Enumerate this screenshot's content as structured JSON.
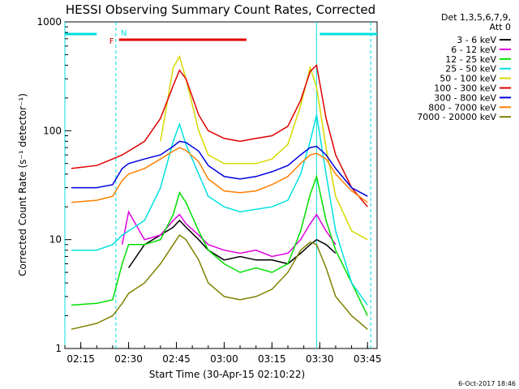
{
  "chart_data": {
    "type": "line",
    "title": "HESSI Observing Summary Count Rates, Corrected",
    "xlabel": "Start Time (30-Apr-15 02:10:22)",
    "ylabel": "Corrected Count Rate (s⁻¹ detector⁻¹)",
    "yscale": "log",
    "ylim": [
      1,
      1000
    ],
    "xlim": [
      "02:10",
      "03:48"
    ],
    "x_ticks": [
      "02:15",
      "02:30",
      "02:45",
      "03:00",
      "03:15",
      "03:30",
      "03:45"
    ],
    "y_ticks": [
      "1",
      "10",
      "100",
      "1000"
    ],
    "legend": {
      "header_line1": "Det 1,3,5,6,7,9,",
      "header_line2": "Att 0",
      "placement": "right"
    },
    "x": [
      "02:12",
      "02:20",
      "02:25",
      "02:28",
      "02:30",
      "02:35",
      "02:40",
      "02:44",
      "02:46",
      "02:48",
      "02:52",
      "02:55",
      "03:00",
      "03:05",
      "03:10",
      "03:15",
      "03:20",
      "03:24",
      "03:27",
      "03:29",
      "03:32",
      "03:35",
      "03:40",
      "03:45"
    ],
    "series": [
      {
        "name": "3 - 6 keV",
        "color": "#000000",
        "values": [
          null,
          null,
          null,
          null,
          5.5,
          9,
          11,
          13,
          15,
          13,
          10,
          8,
          6.5,
          7,
          6.5,
          6.5,
          6,
          7.5,
          9,
          10,
          9,
          7.5,
          null,
          null
        ]
      },
      {
        "name": "6 - 12 keV",
        "color": "#e000e0",
        "values": [
          null,
          null,
          null,
          9,
          18,
          10,
          11,
          15,
          17,
          14,
          11,
          9,
          8,
          7.5,
          8,
          7,
          7.5,
          10,
          14,
          17,
          12,
          9,
          null,
          null
        ]
      },
      {
        "name": "12 - 25 keV",
        "color": "#00e000",
        "values": [
          2.5,
          2.6,
          2.8,
          6,
          9,
          9,
          10,
          17,
          27,
          22,
          12,
          8,
          6,
          5,
          5.5,
          5,
          6,
          12,
          26,
          38,
          15,
          8,
          4,
          2
        ]
      },
      {
        "name": "25 - 50 keV",
        "color": "#00e0e0",
        "values": [
          8,
          8,
          9,
          11,
          12,
          15,
          30,
          80,
          115,
          75,
          40,
          25,
          20,
          18,
          19,
          20,
          23,
          40,
          80,
          140,
          40,
          12,
          4,
          2.5
        ]
      },
      {
        "name": "50 - 100 keV",
        "color": "#d8d800",
        "values": [
          null,
          null,
          null,
          null,
          null,
          null,
          80,
          380,
          480,
          300,
          100,
          60,
          50,
          50,
          50,
          55,
          75,
          170,
          380,
          250,
          70,
          25,
          12,
          10
        ]
      },
      {
        "name": "100 - 300 keV",
        "color": "#e00000",
        "values": [
          45,
          48,
          55,
          60,
          65,
          80,
          130,
          260,
          360,
          300,
          140,
          100,
          85,
          80,
          85,
          90,
          110,
          190,
          350,
          400,
          130,
          60,
          30,
          20
        ]
      },
      {
        "name": "300 - 800 keV",
        "color": "#0000e0",
        "values": [
          30,
          30,
          32,
          45,
          50,
          55,
          60,
          72,
          80,
          78,
          65,
          48,
          38,
          36,
          38,
          42,
          48,
          60,
          70,
          72,
          60,
          45,
          30,
          25
        ]
      },
      {
        "name": "800 - 7000 keV",
        "color": "#ff8000",
        "values": [
          22,
          23,
          25,
          35,
          40,
          45,
          55,
          65,
          70,
          66,
          52,
          36,
          28,
          27,
          28,
          32,
          38,
          50,
          60,
          62,
          55,
          40,
          28,
          22
        ]
      },
      {
        "name": "7000 - 20000 keV",
        "color": "#808000",
        "values": [
          1.5,
          1.7,
          2,
          2.6,
          3.2,
          4,
          6,
          9,
          11,
          10,
          6.5,
          4,
          3,
          2.8,
          3,
          3.5,
          5,
          8,
          9.5,
          9,
          5.5,
          3,
          2,
          1.5
        ]
      }
    ],
    "markers": {
      "N_label": "N",
      "F_label": "F",
      "night_bars": [
        [
          "02:10",
          "02:20"
        ],
        [
          "03:30",
          "03:48"
        ]
      ],
      "flare_bar": [
        "02:27",
        "03:07"
      ],
      "dashed_lines": [
        "02:26",
        "03:46"
      ],
      "solid_lines": [
        "02:10",
        "03:29"
      ],
      "night_color": "#00e0e0",
      "flare_color": "#e00000"
    },
    "grid": false
  },
  "footer": {
    "timestamp": "6-Oct-2017 18:46"
  }
}
